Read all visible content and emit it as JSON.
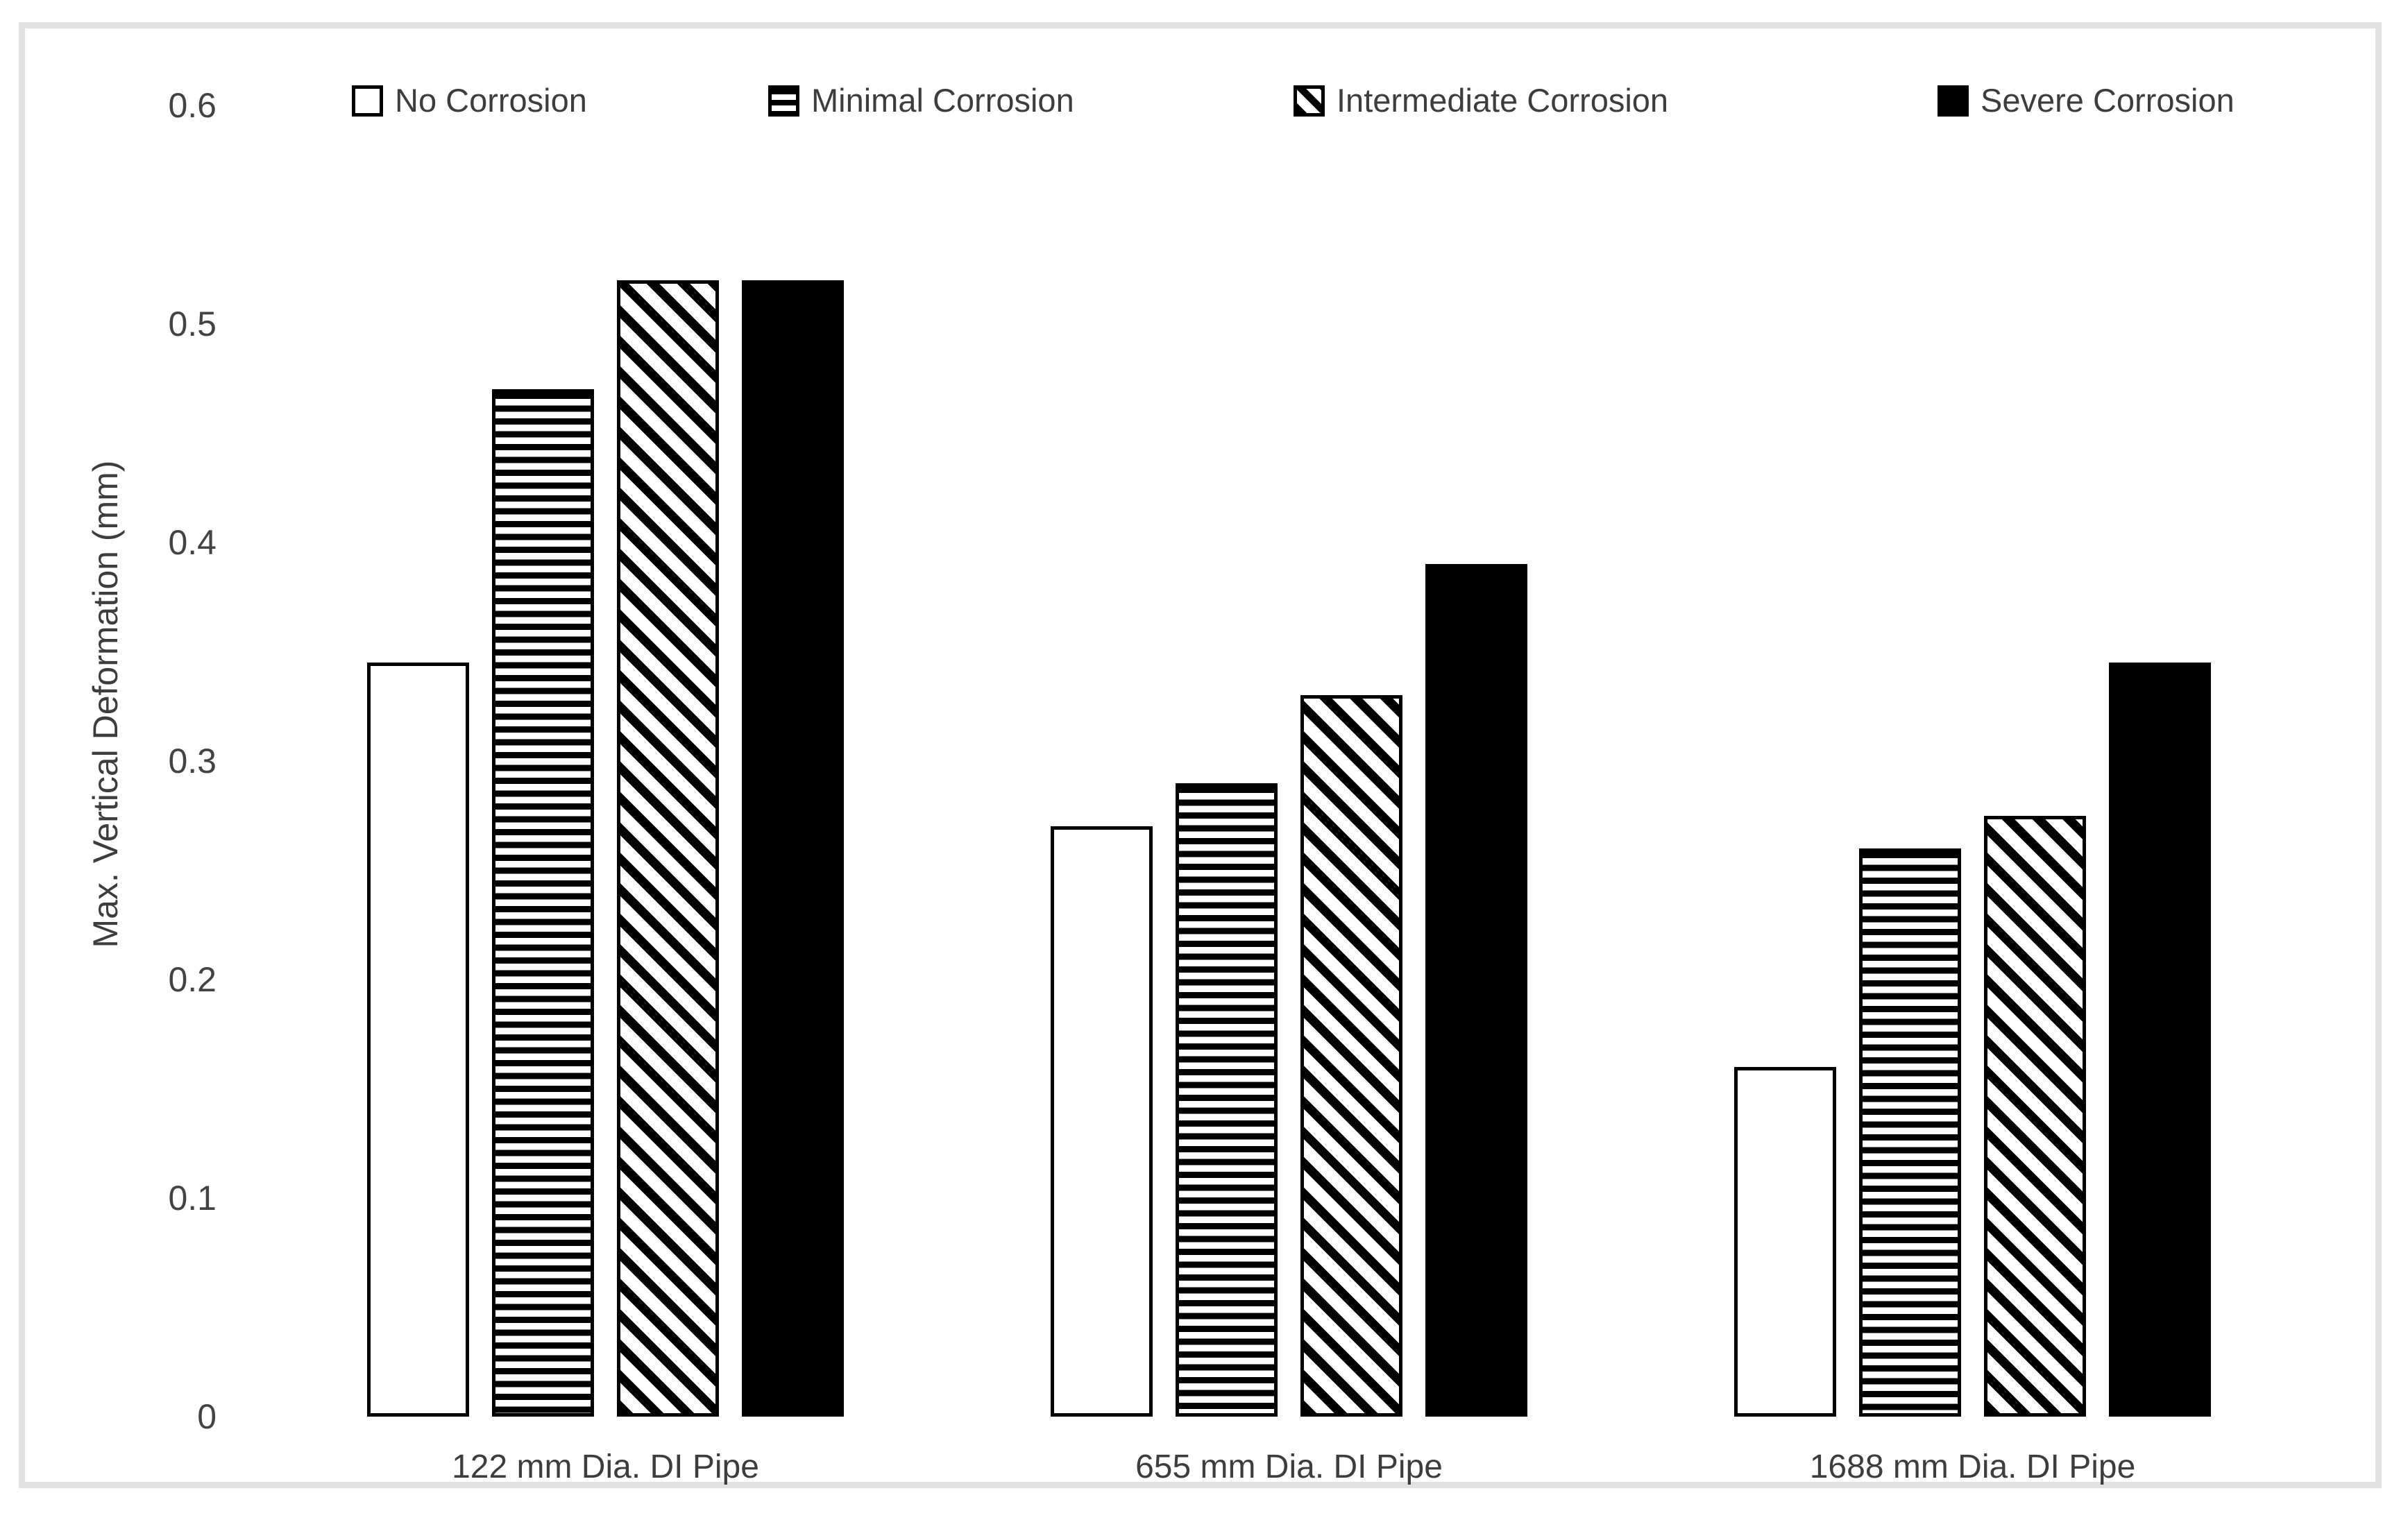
{
  "chart_data": {
    "type": "bar",
    "title": "",
    "xlabel": "",
    "ylabel": "Max. Vertical Deformation (mm)",
    "ylim": [
      0,
      0.6
    ],
    "yticks": [
      0,
      0.1,
      0.2,
      0.3,
      0.4,
      0.5,
      0.6
    ],
    "ytick_labels": [
      "0",
      "0.1",
      "0.2",
      "0.3",
      "0.4",
      "0.5",
      "0.6"
    ],
    "grid": false,
    "legend_position": "top",
    "categories": [
      "122 mm Dia. DI Pipe",
      "655 mm Dia. DI Pipe",
      "1688 mm Dia. DI Pipe"
    ],
    "series": [
      {
        "name": "No Corrosion",
        "fill_pattern": "white",
        "values": [
          0.345,
          0.27,
          0.16
        ]
      },
      {
        "name": "Minimal Corrosion",
        "fill_pattern": "horizontal-stripes",
        "values": [
          0.47,
          0.29,
          0.26
        ]
      },
      {
        "name": "Intermediate Corrosion",
        "fill_pattern": "downward-diagonal-stripes",
        "values": [
          0.52,
          0.33,
          0.275
        ]
      },
      {
        "name": "Severe Corrosion",
        "fill_pattern": "solid-black",
        "values": [
          0.52,
          0.39,
          0.345
        ]
      }
    ]
  },
  "colors": {
    "bar_foreground": "#000000",
    "bar_background": "#ffffff",
    "text": "#3d3d3d",
    "frame_border": "#e2e2e2",
    "background": "#ffffff"
  }
}
